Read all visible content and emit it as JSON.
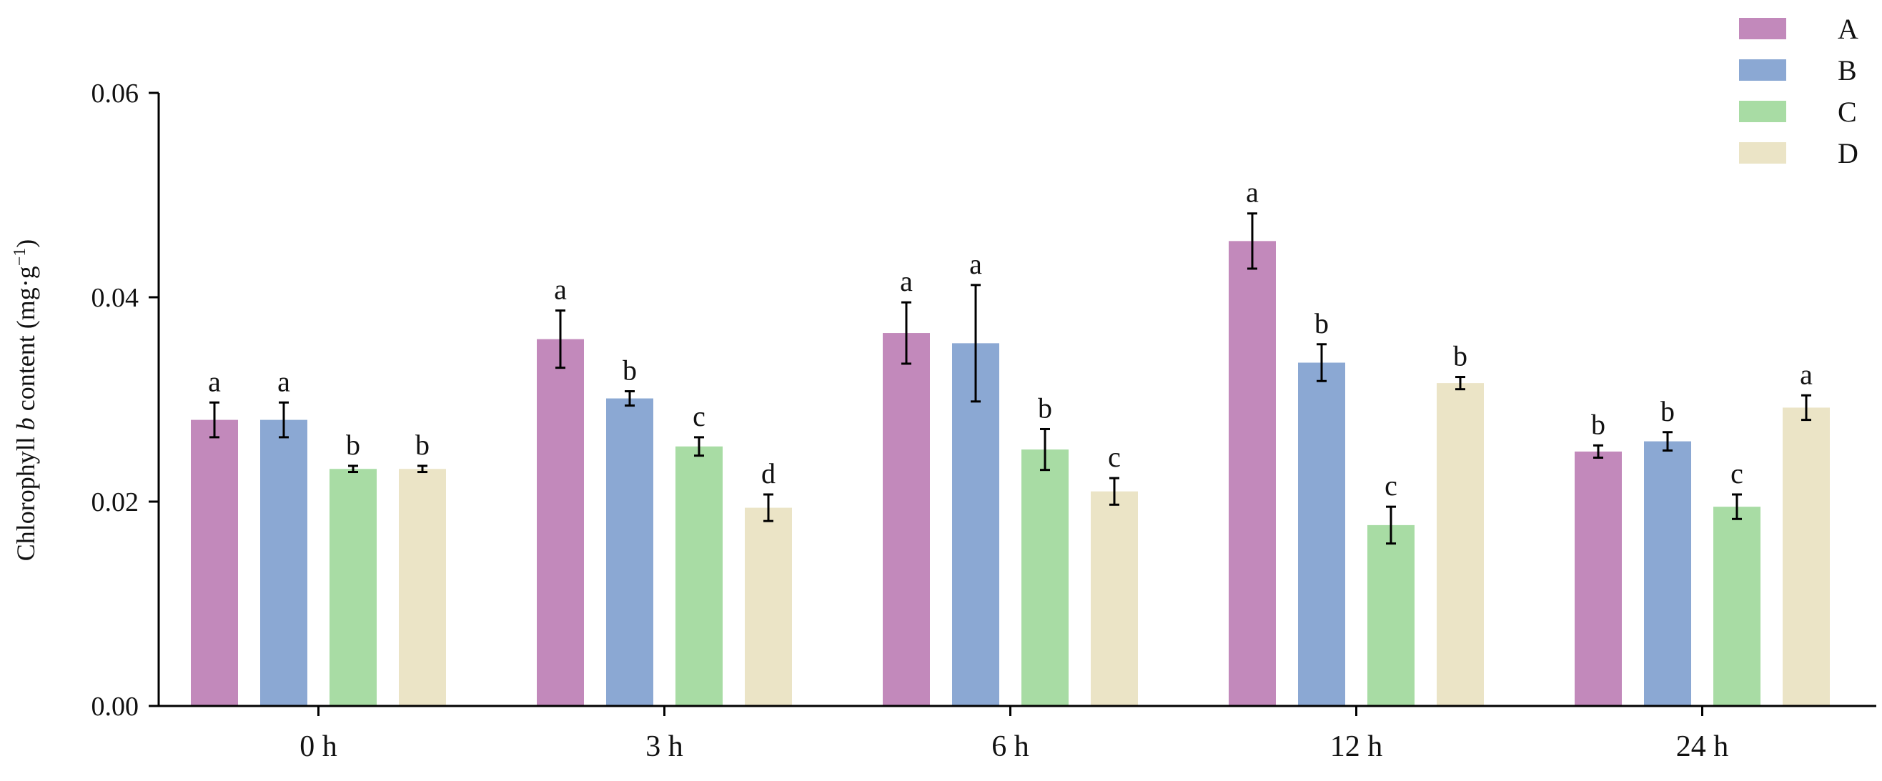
{
  "chart_data": {
    "type": "bar",
    "ylabel_parts": [
      "Chlorophyll ",
      "b",
      " content (mg·g",
      "−1",
      ")"
    ],
    "ylim": [
      0,
      0.06
    ],
    "yticks": [
      "0.00",
      "0.02",
      "0.04",
      "0.06"
    ],
    "ytick_values": [
      0,
      0.02,
      0.04,
      0.06
    ],
    "categories": [
      "0 h",
      "3 h",
      "6 h",
      "12 h",
      "24 h"
    ],
    "legend_position": "top-right",
    "grid": false,
    "series": [
      {
        "name": "A",
        "color": "#c289bb",
        "values": [
          0.028,
          0.0359,
          0.0365,
          0.0455,
          0.0249
        ],
        "errors": [
          0.0017,
          0.0028,
          0.003,
          0.0027,
          0.0006
        ],
        "labels": [
          "a",
          "a",
          "a",
          "a",
          "b"
        ]
      },
      {
        "name": "B",
        "color": "#8ba8d3",
        "values": [
          0.028,
          0.0301,
          0.0355,
          0.0336,
          0.0259
        ],
        "errors": [
          0.0017,
          0.0007,
          0.0057,
          0.0018,
          0.0009
        ],
        "labels": [
          "a",
          "b",
          "a",
          "b",
          "b"
        ]
      },
      {
        "name": "C",
        "color": "#a8dca4",
        "values": [
          0.0232,
          0.0254,
          0.0251,
          0.0177,
          0.0195
        ],
        "errors": [
          0.0003,
          0.0009,
          0.002,
          0.0018,
          0.0012
        ],
        "labels": [
          "b",
          "c",
          "b",
          "c",
          "c"
        ]
      },
      {
        "name": "D",
        "color": "#ebe4c6",
        "values": [
          0.0232,
          0.0194,
          0.021,
          0.0316,
          0.0292
        ],
        "errors": [
          0.0003,
          0.0013,
          0.0013,
          0.0006,
          0.0012
        ],
        "labels": [
          "b",
          "d",
          "c",
          "b",
          "a"
        ]
      }
    ]
  }
}
